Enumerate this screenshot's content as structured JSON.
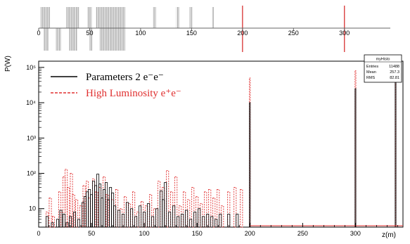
{
  "layout_strip": {
    "x_tick_labels": [
      "0",
      "50",
      "100",
      "150",
      "200",
      "250",
      "300"
    ],
    "x_ticks": [
      0,
      50,
      100,
      150,
      200,
      250,
      300
    ],
    "x_range": [
      0,
      345
    ],
    "blocks": [
      {
        "from": 2,
        "to": 11,
        "side": "up"
      },
      {
        "from": 5,
        "to": 10,
        "side": "down"
      },
      {
        "from": 17,
        "to": 22,
        "side": "down"
      },
      {
        "from": 27,
        "to": 40,
        "side": "up"
      },
      {
        "from": 30,
        "to": 38,
        "side": "down"
      },
      {
        "from": 48,
        "to": 52,
        "side": "up"
      },
      {
        "from": 50,
        "to": 53,
        "side": "down"
      },
      {
        "from": 56,
        "to": 85,
        "side": "up"
      },
      {
        "from": 60,
        "to": 85,
        "side": "down"
      },
      {
        "from": 112,
        "to": 115,
        "side": "up"
      },
      {
        "from": 135,
        "to": 138,
        "side": "up"
      },
      {
        "from": 148,
        "to": 151,
        "side": "up"
      },
      {
        "from": 170,
        "to": 172,
        "side": "up"
      }
    ],
    "red_markers": [
      200,
      300
    ],
    "colors": {
      "block": "#a8a8a8",
      "axis": "#666666",
      "marker": "#d42020"
    }
  },
  "chart_data": {
    "type": "bar",
    "ylabel": "P(W)",
    "xlabel": "z(m)",
    "x_range": [
      0,
      345
    ],
    "y_range": [
      3,
      150000
    ],
    "y_scale": "log",
    "x_ticks": [
      0,
      50,
      100,
      150,
      200,
      250,
      300
    ],
    "x_tick_labels": [
      "0",
      "50",
      "100",
      "150",
      "200",
      "250",
      "300"
    ],
    "y_ticks": [
      10,
      100,
      1000,
      10000,
      100000
    ],
    "y_tick_labels": [
      "10",
      "10²",
      "10³",
      "10⁴",
      "10⁵"
    ],
    "legend": {
      "position": "top-left",
      "entries": [
        {
          "label": "Parameters 2 e⁻e⁻",
          "color": "#000000",
          "style": "solid"
        },
        {
          "label": "High Luminosity e⁺e⁻",
          "color": "#e03030",
          "style": "dashed"
        }
      ]
    },
    "stats_box": {
      "title": "myHisto",
      "rows": [
        {
          "label": "Entries",
          "value": "11488"
        },
        {
          "label": "Mean",
          "value": "257.3"
        },
        {
          "label": "RMS",
          "value": "82.81"
        }
      ]
    },
    "series": [
      {
        "name": "Parameters 2 e⁻e⁻",
        "color": "#000000",
        "style": "solid",
        "bins": [
          [
            8,
            6
          ],
          [
            13,
            4
          ],
          [
            18,
            5
          ],
          [
            21,
            9
          ],
          [
            24,
            7
          ],
          [
            27,
            4
          ],
          [
            30,
            6
          ],
          [
            34,
            8
          ],
          [
            38,
            5
          ],
          [
            42,
            15
          ],
          [
            44,
            22
          ],
          [
            46,
            30
          ],
          [
            48,
            35
          ],
          [
            50,
            25
          ],
          [
            52,
            60
          ],
          [
            54,
            45
          ],
          [
            56,
            95
          ],
          [
            58,
            50
          ],
          [
            60,
            20
          ],
          [
            62,
            35
          ],
          [
            64,
            55
          ],
          [
            66,
            18
          ],
          [
            68,
            40
          ],
          [
            70,
            28
          ],
          [
            72,
            12
          ],
          [
            76,
            9
          ],
          [
            80,
            7
          ],
          [
            84,
            15
          ],
          [
            88,
            10
          ],
          [
            92,
            6
          ],
          [
            96,
            12
          ],
          [
            100,
            8
          ],
          [
            104,
            14
          ],
          [
            108,
            6
          ],
          [
            112,
            10
          ],
          [
            116,
            32
          ],
          [
            118,
            18
          ],
          [
            120,
            55
          ],
          [
            124,
            8
          ],
          [
            128,
            12
          ],
          [
            132,
            6
          ],
          [
            136,
            7
          ],
          [
            140,
            9
          ],
          [
            144,
            5
          ],
          [
            148,
            8
          ],
          [
            152,
            10
          ],
          [
            156,
            6
          ],
          [
            160,
            7
          ],
          [
            164,
            6
          ],
          [
            168,
            5
          ],
          [
            172,
            7
          ],
          [
            180,
            7
          ],
          [
            188,
            7
          ],
          [
            200,
            10000
          ],
          [
            300,
            25000
          ],
          [
            338,
            50000
          ]
        ]
      },
      {
        "name": "High Luminosity e⁺e⁻",
        "color": "#e03030",
        "style": "dashed",
        "bins": [
          [
            8,
            8
          ],
          [
            11,
            20
          ],
          [
            14,
            6
          ],
          [
            20,
            30
          ],
          [
            24,
            80
          ],
          [
            26,
            130
          ],
          [
            28,
            40
          ],
          [
            31,
            100
          ],
          [
            33,
            25
          ],
          [
            36,
            18
          ],
          [
            40,
            12
          ],
          [
            43,
            45
          ],
          [
            46,
            60
          ],
          [
            48,
            20
          ],
          [
            52,
            70
          ],
          [
            55,
            30
          ],
          [
            58,
            40
          ],
          [
            62,
            80
          ],
          [
            65,
            25
          ],
          [
            70,
            18
          ],
          [
            74,
            35
          ],
          [
            78,
            10
          ],
          [
            82,
            22
          ],
          [
            86,
            14
          ],
          [
            90,
            30
          ],
          [
            94,
            8
          ],
          [
            98,
            16
          ],
          [
            102,
            12
          ],
          [
            106,
            25
          ],
          [
            110,
            10
          ],
          [
            114,
            60
          ],
          [
            118,
            40
          ],
          [
            122,
            120
          ],
          [
            126,
            30
          ],
          [
            130,
            80
          ],
          [
            134,
            12
          ],
          [
            138,
            30
          ],
          [
            142,
            18
          ],
          [
            146,
            40
          ],
          [
            150,
            22
          ],
          [
            154,
            14
          ],
          [
            158,
            30
          ],
          [
            162,
            35
          ],
          [
            166,
            20
          ],
          [
            170,
            35
          ],
          [
            174,
            12
          ],
          [
            180,
            30
          ],
          [
            186,
            40
          ],
          [
            192,
            35
          ],
          [
            200,
            50000
          ],
          [
            300,
            80000
          ],
          [
            338,
            100000
          ]
        ]
      }
    ]
  }
}
